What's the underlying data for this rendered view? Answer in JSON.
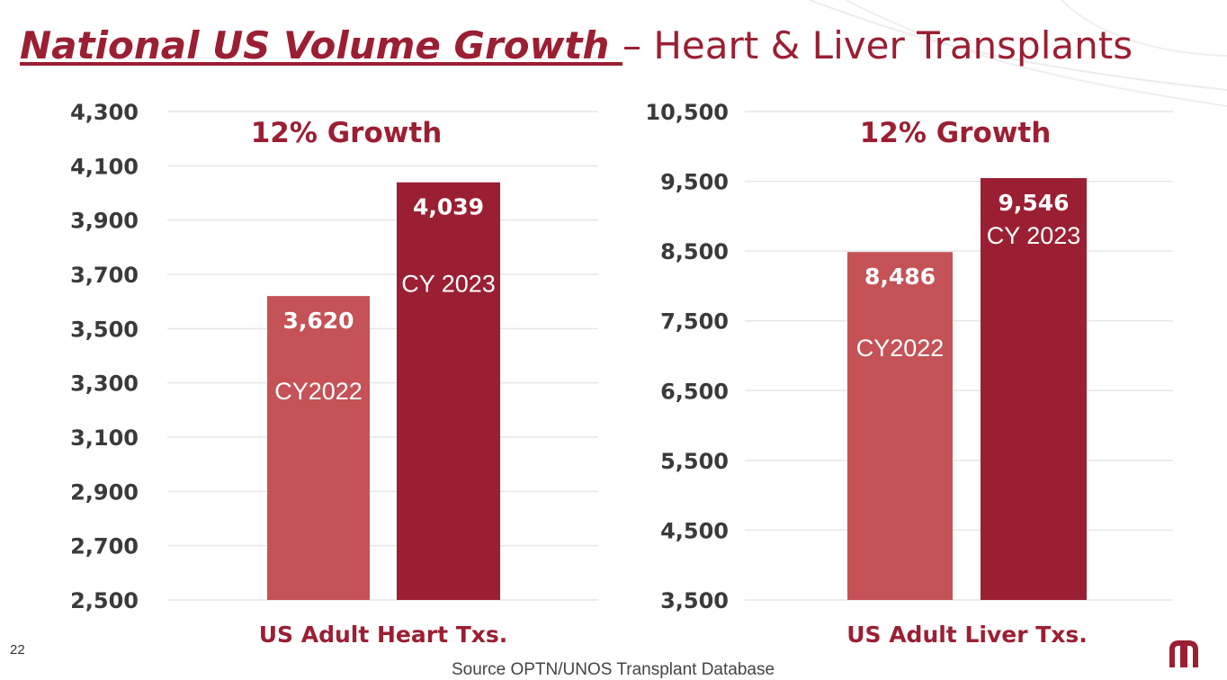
{
  "slide": {
    "title_main": "National US Volume Growth ",
    "title_sep": "–",
    "title_rest": " Heart & Liver Transplants",
    "page_number": "22",
    "source": "Source OPTN/UNOS Transplant Database"
  },
  "colors": {
    "accent": "#9b1f33",
    "bar_2022": "#c45257",
    "bar_2023": "#9b1f33",
    "grid": "#e6e6e6",
    "axis_text": "#3a3a3a"
  },
  "chart_data": [
    {
      "type": "bar",
      "annotation": "12% Growth",
      "xlabel": "US Adult Heart Txs.",
      "ylim": [
        2500,
        4300
      ],
      "yticks": [
        2500,
        2700,
        2900,
        3100,
        3300,
        3500,
        3700,
        3900,
        4100,
        4300
      ],
      "ytick_labels": [
        "2,500",
        "2,700",
        "2,900",
        "3,100",
        "3,300",
        "3,500",
        "3,700",
        "3,900",
        "4,100",
        "4,300"
      ],
      "grid": true,
      "bars": [
        {
          "label": "CY2022",
          "value": 3620,
          "value_label": "3,620",
          "color": "#c45257"
        },
        {
          "label": "CY 2023",
          "value": 4039,
          "value_label": "4,039",
          "color": "#9b1f33"
        }
      ]
    },
    {
      "type": "bar",
      "annotation": "12% Growth",
      "xlabel": "US Adult Liver Txs.",
      "ylim": [
        3500,
        10500
      ],
      "yticks": [
        3500,
        4500,
        5500,
        6500,
        7500,
        8500,
        9500,
        10500
      ],
      "ytick_labels": [
        "3,500",
        "4,500",
        "5,500",
        "6,500",
        "7,500",
        "8,500",
        "9,500",
        "10,500"
      ],
      "grid": true,
      "bars": [
        {
          "label": "CY2022",
          "value": 8486,
          "value_label": "8,486",
          "color": "#c45257"
        },
        {
          "label": "CY 2023",
          "value": 9546,
          "value_label": "9,546",
          "color": "#9b1f33"
        }
      ]
    }
  ]
}
